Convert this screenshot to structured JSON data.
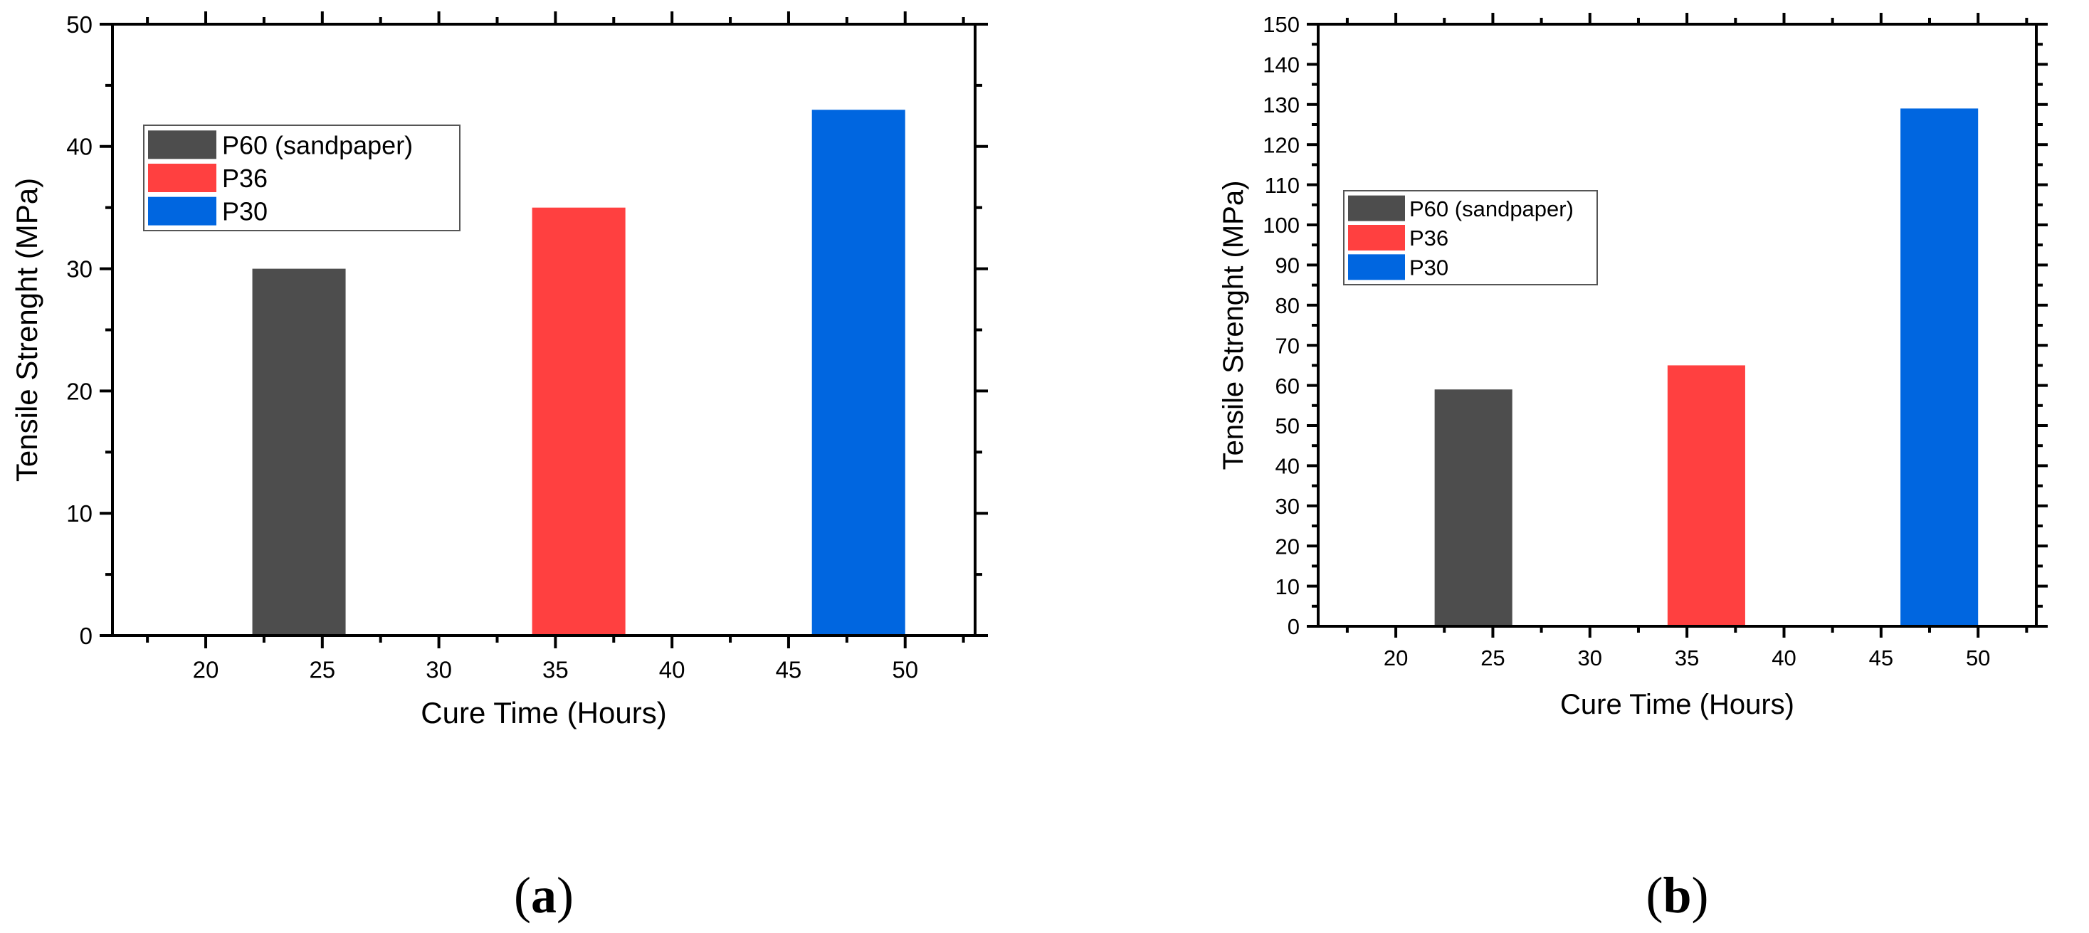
{
  "chart_data": [
    {
      "type": "bar",
      "panel_label_prefix": "(",
      "panel_label_letter": "a",
      "panel_label_suffix": ")",
      "xlabel": "Cure Time (Hours)",
      "ylabel": "Tensile Strenght (MPa)",
      "xlim": [
        16,
        53
      ],
      "ylim": [
        0,
        50
      ],
      "xticks": [
        20,
        25,
        30,
        35,
        40,
        45,
        50
      ],
      "yticks": [
        0,
        10,
        20,
        30,
        40,
        50
      ],
      "legend_position": "top-left",
      "series": [
        {
          "name": "P60 (sandpaper)",
          "color": "#4d4d4d",
          "x": 24,
          "value": 30
        },
        {
          "name": "P36",
          "color": "#ff4040",
          "x": 36,
          "value": 35
        },
        {
          "name": "P30",
          "color": "#0066e0",
          "x": 48,
          "value": 43
        }
      ]
    },
    {
      "type": "bar",
      "panel_label_prefix": "(",
      "panel_label_letter": "b",
      "panel_label_suffix": ")",
      "xlabel": "Cure Time (Hours)",
      "ylabel": "Tensile Strenght (MPa)",
      "xlim": [
        16,
        53
      ],
      "ylim": [
        0,
        150
      ],
      "xticks": [
        20,
        25,
        30,
        35,
        40,
        45,
        50
      ],
      "yticks": [
        0,
        10,
        20,
        30,
        40,
        50,
        60,
        70,
        80,
        90,
        100,
        110,
        120,
        130,
        140,
        150
      ],
      "legend_position": "top-left",
      "series": [
        {
          "name": "P60 (sandpaper)",
          "color": "#4d4d4d",
          "x": 24,
          "value": 59
        },
        {
          "name": "P36",
          "color": "#ff4040",
          "x": 36,
          "value": 65
        },
        {
          "name": "P30",
          "color": "#0066e0",
          "x": 48,
          "value": 129
        }
      ]
    }
  ]
}
